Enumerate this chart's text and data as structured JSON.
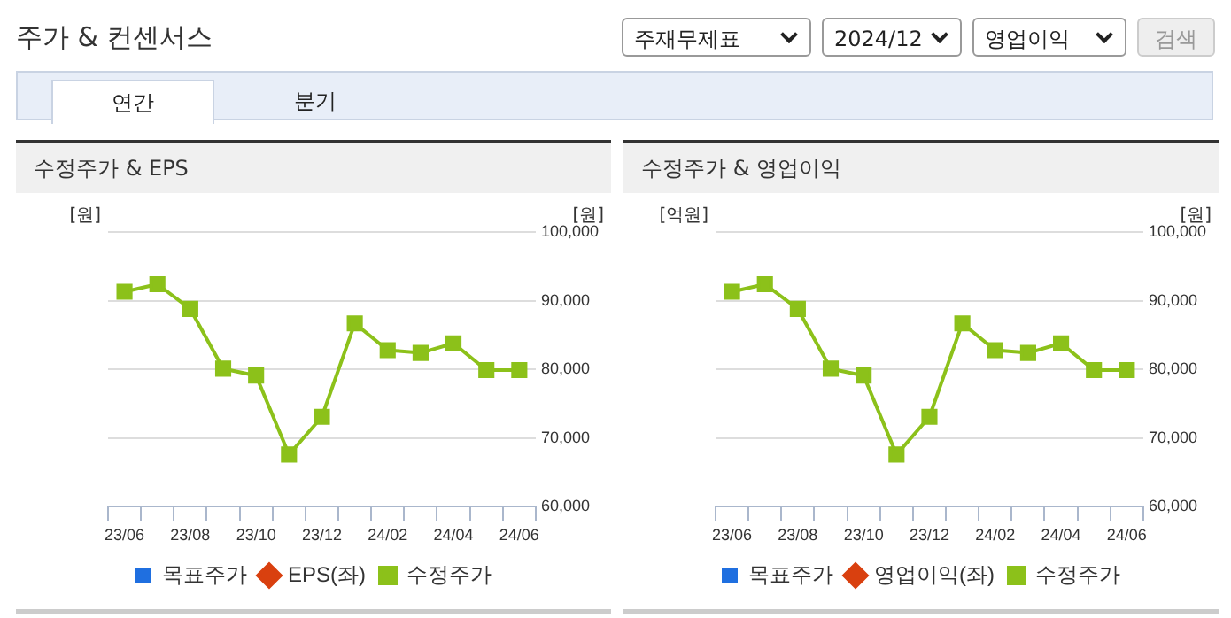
{
  "chart_data": [
    {
      "type": "other",
      "title": "주가 & 컨센서스",
      "annotations": [
        "주재무제표",
        "2024/12",
        "영업이익",
        "검색",
        "연간",
        "분기"
      ]
    },
    {
      "type": "line",
      "title": "수정주가 & EPS",
      "ylabel": "[원]",
      "y2label": "[원]",
      "categories": [
        "23/06",
        null,
        "23/08",
        null,
        "23/10",
        null,
        "23/12",
        null,
        "24/02",
        null,
        "24/04",
        null,
        "24/06"
      ],
      "series": [
        {
          "name": "목표주가",
          "type": "bar",
          "color": "#1f6fe0",
          "values": [
            null,
            null,
            null,
            null,
            null,
            null,
            null,
            null,
            null,
            null,
            null,
            null,
            null
          ]
        },
        {
          "name": "EPS(좌)",
          "type": "line",
          "marker": "diamond",
          "color": "#d9400f",
          "values": [
            null,
            null,
            null,
            null,
            null,
            null,
            null,
            null,
            null,
            null,
            null,
            null,
            null
          ]
        },
        {
          "name": "수정주가",
          "type": "line",
          "marker": "square",
          "axis": "y2",
          "color": "#8cc11a",
          "values": [
            91300,
            92400,
            88800,
            80100,
            79100,
            67600,
            73100,
            86700,
            82800,
            82400,
            83800,
            79900,
            79900
          ]
        }
      ],
      "y2lim": [
        60000,
        100000
      ],
      "y2ticks": [
        {
          "value": 60000,
          "label": "60,000"
        },
        {
          "value": 70000,
          "label": "70,000"
        },
        {
          "value": 80000,
          "label": "80,000"
        },
        {
          "value": 90000,
          "label": "90,000"
        },
        {
          "value": 100000,
          "label": "100,000"
        }
      ],
      "grid": "y",
      "legend": "bottom"
    },
    {
      "type": "line",
      "title": "수정주가 & 영업이익",
      "ylabel": "[억원]",
      "y2label": "[원]",
      "categories": [
        "23/06",
        null,
        "23/08",
        null,
        "23/10",
        null,
        "23/12",
        null,
        "24/02",
        null,
        "24/04",
        null,
        "24/06"
      ],
      "series": [
        {
          "name": "목표주가",
          "type": "bar",
          "color": "#1f6fe0",
          "values": [
            null,
            null,
            null,
            null,
            null,
            null,
            null,
            null,
            null,
            null,
            null,
            null,
            null
          ]
        },
        {
          "name": "영업이익(좌)",
          "type": "line",
          "marker": "diamond",
          "color": "#d9400f",
          "values": [
            null,
            null,
            null,
            null,
            null,
            null,
            null,
            null,
            null,
            null,
            null,
            null,
            null
          ]
        },
        {
          "name": "수정주가",
          "type": "line",
          "marker": "square",
          "axis": "y2",
          "color": "#8cc11a",
          "values": [
            91300,
            92400,
            88800,
            80100,
            79100,
            67600,
            73100,
            86700,
            82800,
            82400,
            83800,
            79900,
            79900
          ]
        }
      ],
      "y2lim": [
        60000,
        100000
      ],
      "y2ticks": [
        {
          "value": 60000,
          "label": "60,000"
        },
        {
          "value": 70000,
          "label": "70,000"
        },
        {
          "value": 80000,
          "label": "80,000"
        },
        {
          "value": 90000,
          "label": "90,000"
        },
        {
          "value": 100000,
          "label": "100,000"
        }
      ],
      "grid": "y",
      "legend": "bottom"
    }
  ]
}
